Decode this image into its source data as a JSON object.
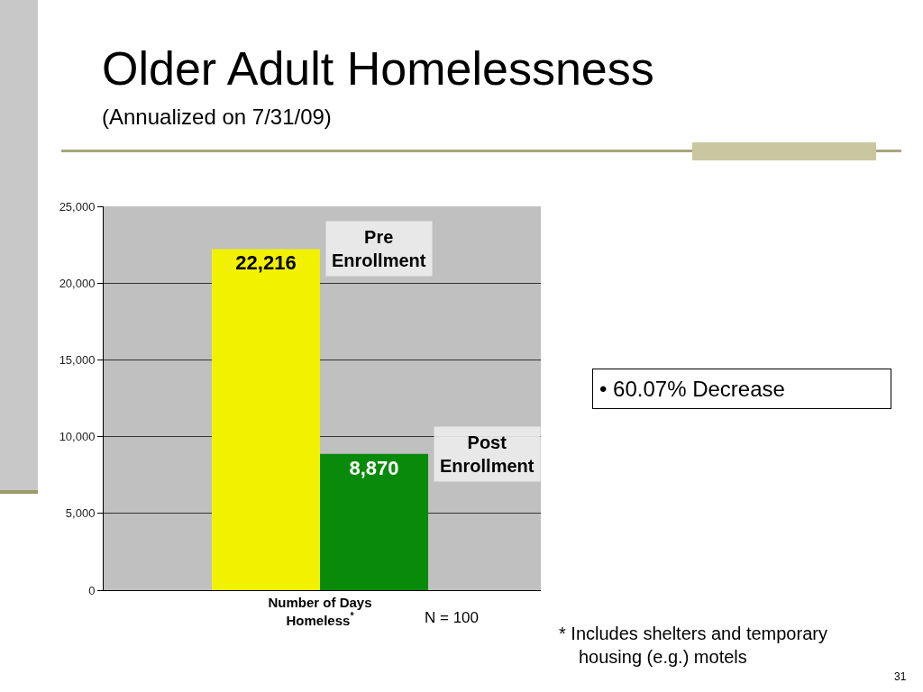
{
  "chart_data": {
    "type": "bar",
    "title": "Older Adult Homelessness",
    "subtitle": "(Annualized on 7/31/09)",
    "categories": [
      "Number of Days Homeless$^{*}$"
    ],
    "series": [
      {
        "name": "Pre Enrollment",
        "color": "#f2f200",
        "values": [
          22216
        ],
        "value_labels": [
          "22,216"
        ]
      },
      {
        "name": "Post Enrollment",
        "color": "#0a8a0a",
        "values": [
          8870
        ],
        "value_labels": [
          "8,870"
        ]
      }
    ],
    "ylim": [
      0,
      25000
    ],
    "yticks": [
      0,
      {
        "value": 5000,
        "label": "5,000"
      },
      {
        "value": 10000,
        "label": "10,000"
      },
      {
        "value": 15000,
        "label": "15,000"
      },
      {
        "value": 20000,
        "label": "20,000"
      },
      {
        "value": 25000,
        "label": "25,000"
      }
    ],
    "grid": "y",
    "annotations": [
      "• 60.07% Decrease",
      "N = 100",
      "* Includes shelters and temporary housing (e.g.) motels",
      "31"
    ]
  }
}
